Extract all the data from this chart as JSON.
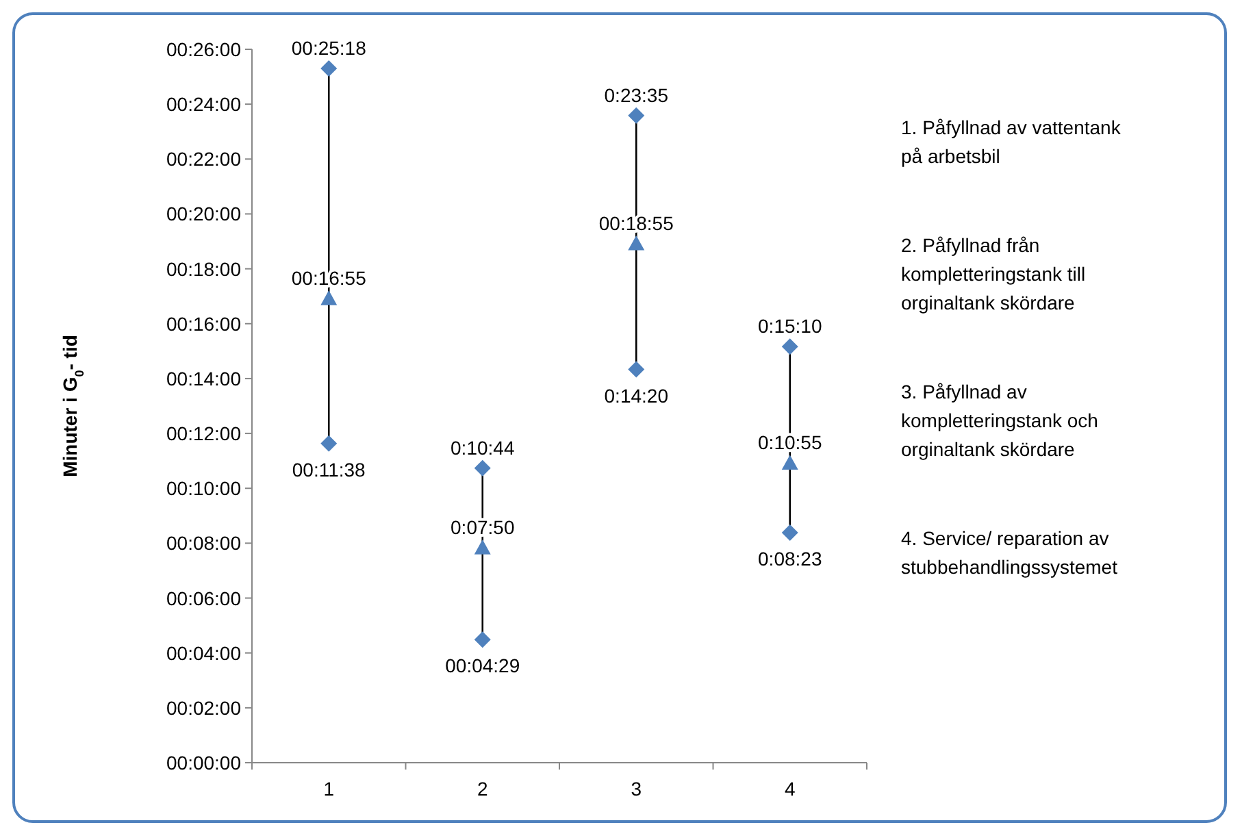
{
  "chart_data": {
    "type": "scatter",
    "ylabel": "Minuter i G$_{0}$- tid",
    "categories": [
      "1",
      "2",
      "3",
      "4"
    ],
    "ylim": [
      0,
      26
    ],
    "yticks": [
      {
        "value": 0,
        "label": "00:00:00"
      },
      {
        "value": 2,
        "label": "00:02:00"
      },
      {
        "value": 4,
        "label": "00:04:00"
      },
      {
        "value": 6,
        "label": "00:06:00"
      },
      {
        "value": 8,
        "label": "00:08:00"
      },
      {
        "value": 10,
        "label": "00:10:00"
      },
      {
        "value": 12,
        "label": "00:12:00"
      },
      {
        "value": 14,
        "label": "00:14:00"
      },
      {
        "value": 16,
        "label": "00:16:00"
      },
      {
        "value": 18,
        "label": "00:18:00"
      },
      {
        "value": 20,
        "label": "00:20:00"
      },
      {
        "value": 22,
        "label": "00:22:00"
      },
      {
        "value": 24,
        "label": "00:24:00"
      },
      {
        "value": 26,
        "label": "00:26:00"
      }
    ],
    "grid": false,
    "series": [
      {
        "color": "#4f81bd",
        "marker": "diamond",
        "values": [
          25.3,
          10.7333,
          23.5833,
          15.1667
        ],
        "value_labels": [
          "00:25:18",
          "0:10:44",
          "0:23:35",
          "0:15:10"
        ]
      },
      {
        "color": "#4f81bd",
        "marker": "triangle",
        "values": [
          16.9167,
          7.8333,
          18.9167,
          10.9167
        ],
        "value_labels": [
          "00:16:55",
          "0:07:50",
          "00:18:55",
          "0:10:55"
        ]
      },
      {
        "color": "#4f81bd",
        "marker": "diamond",
        "values": [
          11.6333,
          4.4833,
          14.3333,
          8.3833
        ],
        "value_labels": [
          "00:11:38",
          "00:04:29",
          "0:14:20",
          "0:08:23"
        ]
      }
    ],
    "annotations": [
      "1. Påfyllnad av vattentank på arbetsbil",
      "2. Påfyllnad från kompletteringstank till orginaltank skördare",
      "3. Påfyllnad av kompletteringstank och orginaltank skördare",
      "4. Service/ reparation av stubbehandlingssystemet"
    ]
  }
}
